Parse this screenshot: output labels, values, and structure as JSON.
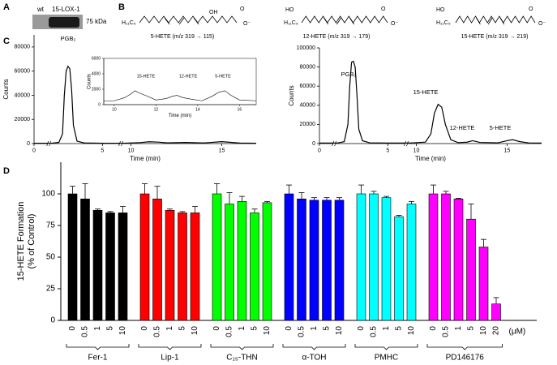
{
  "panel_labels": [
    "A",
    "B",
    "C",
    "D"
  ],
  "blot": {
    "lanes": [
      "wt",
      "15-LOX-1"
    ],
    "marker": "75 kDa"
  },
  "structures": [
    {
      "caption": "5-HETE (m/z 319 → 115)",
      "atoms": [
        "H₁₁C₅",
        "OH",
        "O",
        "O⁻"
      ]
    },
    {
      "caption": "12-HETE (m/z 319 → 179)",
      "atoms": [
        "HO",
        "H₁₁C₅",
        "O",
        "O⁻"
      ]
    },
    {
      "caption": "15-HETE (m/z 319 → 219)",
      "atoms": [
        "HO",
        "H₁₁C₅",
        "O",
        "O⁻"
      ]
    }
  ],
  "chart_data": [
    {
      "type": "line",
      "xlabel": "Time (min)",
      "ylabel": "Counts",
      "color": "#000000",
      "xsegments": [
        [
          0,
          0.7
        ],
        [
          2.2,
          5.9
        ],
        [
          9.6,
          16.9
        ]
      ],
      "xticks": [
        0,
        5,
        10,
        15
      ],
      "ylim": [
        0,
        90000
      ],
      "yticks": [
        0,
        20000,
        40000,
        60000,
        80000
      ],
      "x": [
        0,
        0.5,
        2.2,
        2.6,
        2.8,
        2.9,
        3.0,
        3.1,
        3.2,
        3.3,
        3.4,
        3.6,
        4.0,
        5.0,
        5.9,
        9.6,
        10.5,
        11.0,
        11.5,
        12.0,
        13.0,
        14.0,
        15.0,
        15.5,
        16.0,
        16.9
      ],
      "values": [
        300,
        300,
        300,
        1000,
        8000,
        40000,
        60000,
        64000,
        62000,
        45000,
        15000,
        2000,
        500,
        300,
        300,
        300,
        800,
        1500,
        1200,
        600,
        900,
        500,
        1600,
        1000,
        400,
        300
      ],
      "annotations": [
        "PGB₂"
      ]
    },
    {
      "type": "line",
      "xlabel": "Time (min)",
      "ylabel": "Counts",
      "color": "#000000",
      "box": true,
      "xlim": [
        9.5,
        16.8
      ],
      "xticks": [
        10,
        12,
        14,
        16
      ],
      "ylim": [
        0,
        6000
      ],
      "yticks": [
        0,
        2000,
        4000,
        6000
      ],
      "x": [
        9.5,
        10,
        10.5,
        10.8,
        11.0,
        11.2,
        11.5,
        12,
        12.5,
        12.8,
        13.0,
        13.3,
        13.7,
        14.2,
        14.7,
        15.0,
        15.3,
        15.6,
        16.0,
        16.8
      ],
      "values": [
        500,
        500,
        900,
        1400,
        1800,
        1500,
        1200,
        600,
        800,
        1100,
        1200,
        900,
        700,
        500,
        1100,
        1600,
        1800,
        1200,
        600,
        500
      ],
      "annotations": [
        "15-HETE",
        "12-HETE",
        "5-HETE"
      ]
    },
    {
      "type": "line",
      "xlabel": "Time (min)",
      "ylabel": "Counts",
      "color": "#000000",
      "xsegments": [
        [
          0,
          0.7
        ],
        [
          2.2,
          5.9
        ],
        [
          9.6,
          16.9
        ]
      ],
      "xticks": [
        0,
        5,
        10,
        15
      ],
      "ylim": [
        0,
        100000
      ],
      "yticks": [
        0,
        20000,
        40000,
        60000,
        80000,
        100000
      ],
      "x": [
        0,
        0.5,
        2.2,
        2.6,
        2.8,
        2.9,
        3.0,
        3.1,
        3.2,
        3.3,
        3.4,
        3.6,
        4.0,
        5.0,
        5.9,
        9.6,
        10.5,
        10.8,
        11.0,
        11.2,
        11.4,
        11.6,
        11.9,
        12.3,
        12.8,
        13.1,
        13.5,
        14.5,
        15.0,
        15.3,
        15.7,
        16.2,
        16.9
      ],
      "values": [
        500,
        500,
        500,
        2000,
        20000,
        60000,
        85000,
        86000,
        80000,
        50000,
        15000,
        3000,
        800,
        500,
        500,
        500,
        1500,
        10000,
        32000,
        41000,
        38000,
        20000,
        4000,
        1000,
        1500,
        3000,
        1200,
        800,
        3000,
        4000,
        2000,
        700,
        500
      ],
      "annotations": [
        "PGB₂",
        "15-HETE",
        "12-HETE",
        "5-HETE"
      ]
    },
    {
      "type": "bar",
      "ylabel": [
        "15-HETE Formation",
        "(% of Control)"
      ],
      "unit": "(μM)",
      "ylim": [
        0,
        125
      ],
      "yticks": [
        0,
        25,
        50,
        75,
        100
      ],
      "groups": [
        {
          "name": "Fer-1",
          "color": "#000000",
          "categories": [
            "0",
            "0.5",
            "1",
            "5",
            "10"
          ],
          "values": [
            100,
            96,
            87,
            85,
            85
          ],
          "errors": [
            6,
            12,
            1,
            1,
            5
          ]
        },
        {
          "name": "Lip-1",
          "color": "#ff0000",
          "categories": [
            "0",
            "0.5",
            "1",
            "5",
            "10"
          ],
          "values": [
            100,
            96,
            87,
            85,
            85
          ],
          "errors": [
            8,
            10,
            1,
            1,
            5
          ]
        },
        {
          "name": "C₁₅-THN",
          "color": "#00ff00",
          "categories": [
            "0",
            "0.5",
            "1",
            "5",
            "10"
          ],
          "values": [
            100,
            92,
            94,
            85,
            93
          ],
          "errors": [
            8,
            9,
            4,
            3,
            1
          ]
        },
        {
          "name": "α-TOH",
          "color": "#0000ff",
          "categories": [
            "0",
            "0.5",
            "1",
            "5",
            "10"
          ],
          "values": [
            100,
            96,
            95,
            95,
            95
          ],
          "errors": [
            7,
            5,
            2,
            2,
            2
          ]
        },
        {
          "name": "PMHC",
          "color": "#00ffff",
          "categories": [
            "0",
            "0.5",
            "1",
            "5",
            "10"
          ],
          "values": [
            100,
            100,
            97,
            82,
            92
          ],
          "errors": [
            7,
            2,
            1,
            1,
            2
          ]
        },
        {
          "name": "PD146176",
          "color": "#ff00ff",
          "categories": [
            "0",
            "0.5",
            "1",
            "5",
            "10",
            "20"
          ],
          "values": [
            100,
            100,
            96,
            80,
            58,
            13
          ],
          "errors": [
            7,
            2,
            0.5,
            12,
            6,
            5
          ]
        }
      ]
    }
  ]
}
